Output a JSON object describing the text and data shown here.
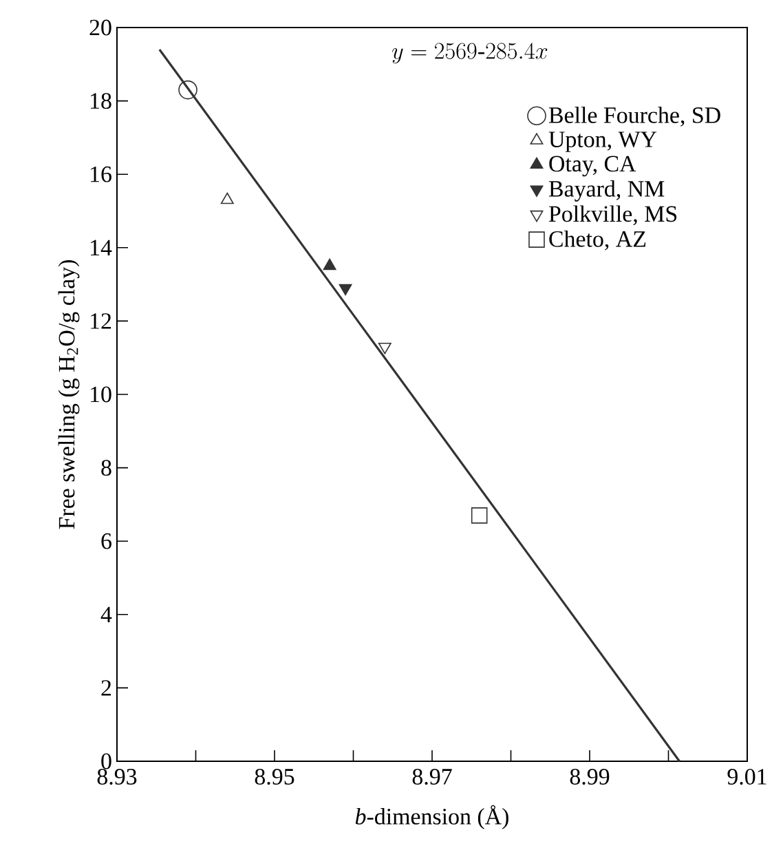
{
  "chart_data": {
    "type": "scatter",
    "xlabel": "*b*-dimension  (Å)",
    "ylabel": "Free swelling (g H$_{2}$O/g clay)",
    "xlim": [
      8.93,
      9.01
    ],
    "ylim": [
      0,
      20
    ],
    "xticks": [
      8.93,
      {
        "value": 8.94,
        "label": null
      },
      8.95,
      {
        "value": 8.96,
        "label": null
      },
      8.97,
      {
        "value": 8.98,
        "label": null
      },
      8.99,
      {
        "value": 9.0,
        "label": null
      },
      9.01
    ],
    "yticks": [
      0,
      2,
      4,
      6,
      8,
      10,
      12,
      14,
      16,
      18,
      20
    ],
    "legend": "top right",
    "grid": false,
    "annotations": [
      "y = 2569\\text{-}285.4x"
    ],
    "series": [
      {
        "name": "Belle Fourche, SD",
        "color": "#333333",
        "marker": "circle",
        "x": [
          8.939
        ],
        "values": [
          18.3
        ]
      },
      {
        "name": "Upton, WY",
        "color": "#333333",
        "marker": "triangle",
        "x": [
          8.944
        ],
        "values": [
          15.3
        ]
      },
      {
        "name": "Otay, CA",
        "color": "#333333",
        "marker": "triangle-filled",
        "x": [
          8.957
        ],
        "values": [
          13.5
        ]
      },
      {
        "name": "Bayard, NM",
        "color": "#333333",
        "marker": "triangle-down-filled",
        "x": [
          8.959
        ],
        "values": [
          12.9
        ]
      },
      {
        "name": "Polkville, MS",
        "color": "#333333",
        "marker": "triangle-down",
        "x": [
          8.964
        ],
        "values": [
          11.3
        ]
      },
      {
        "name": "Cheto, AZ",
        "color": "#333333",
        "marker": "square",
        "x": [
          8.976
        ],
        "values": [
          6.7
        ]
      },
      {
        "type": "line",
        "color": "#333333",
        "marker": "none",
        "line_style": "solid",
        "x": [
          8.9354,
          9.0014
        ],
        "values": [
          19.4,
          0
        ]
      }
    ]
  }
}
